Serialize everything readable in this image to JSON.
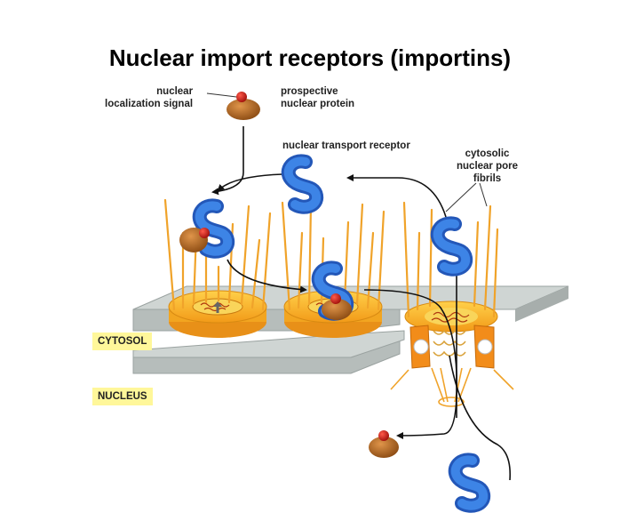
{
  "title": "Nuclear import receptors (importins)",
  "labels": {
    "nls": "nuclear\nlocalization signal",
    "cargo": "prospective\nnuclear protein",
    "receptor": "nuclear transport receptor",
    "fibrils": "cytosolic\nnuclear pore\nfibrils"
  },
  "regions": {
    "cytosol": "CYTOSOL",
    "nucleus": "NUCLEUS"
  },
  "colors": {
    "receptor": "#2f6fcf",
    "cargo": "#b8661a",
    "signal": "#c8201a",
    "membrane": "#c5cbc9",
    "pore": "#f7b526",
    "fibril": "#f0a32a",
    "label_bg": "#fff79a"
  }
}
